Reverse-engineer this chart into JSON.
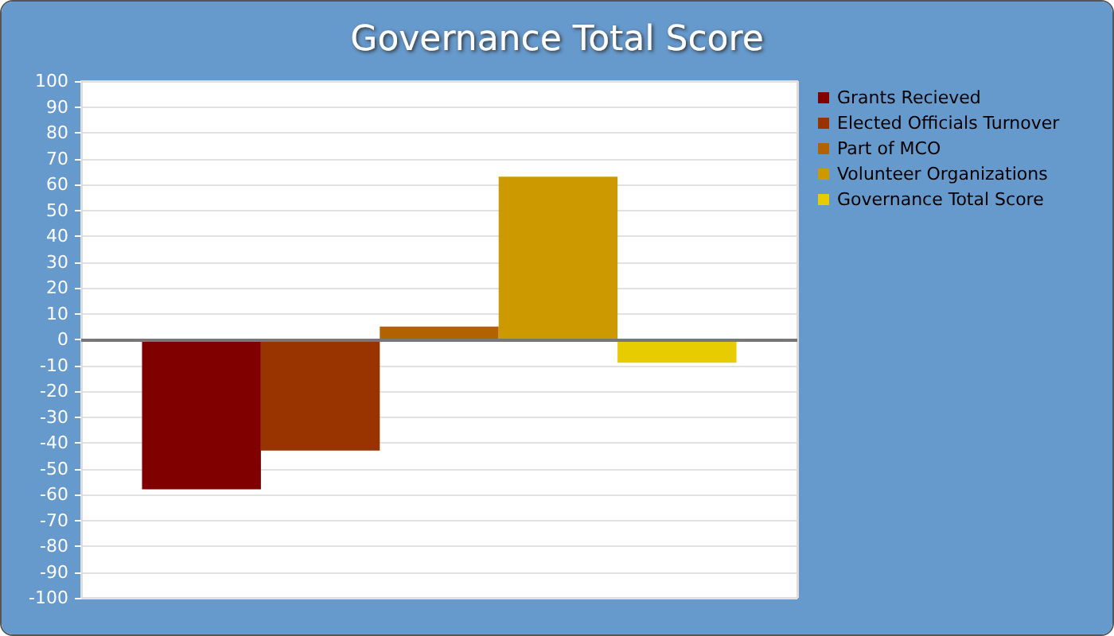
{
  "chart_data": {
    "type": "bar",
    "title": "Governance Total Score",
    "categories": [
      null
    ],
    "series": [
      {
        "name": "Grants Recieved",
        "color": "#800000",
        "values": [
          -58
        ]
      },
      {
        "name": "Elected Officials Turnover",
        "color": "#993300",
        "values": [
          -43
        ]
      },
      {
        "name": "Part of MCO",
        "color": "#b36200",
        "values": [
          5
        ]
      },
      {
        "name": "Volunteer Organizations",
        "color": "#cc9900",
        "values": [
          63
        ]
      },
      {
        "name": "Governance Total Score",
        "color": "#e6cc00",
        "values": [
          -9
        ]
      }
    ],
    "ylim": [
      -100,
      100
    ],
    "yticks": [
      -100,
      -90,
      -80,
      -70,
      -60,
      -50,
      -40,
      -30,
      -20,
      -10,
      0,
      10,
      20,
      30,
      40,
      50,
      60,
      70,
      80,
      90,
      100
    ],
    "grid": true,
    "legend": "top right"
  }
}
